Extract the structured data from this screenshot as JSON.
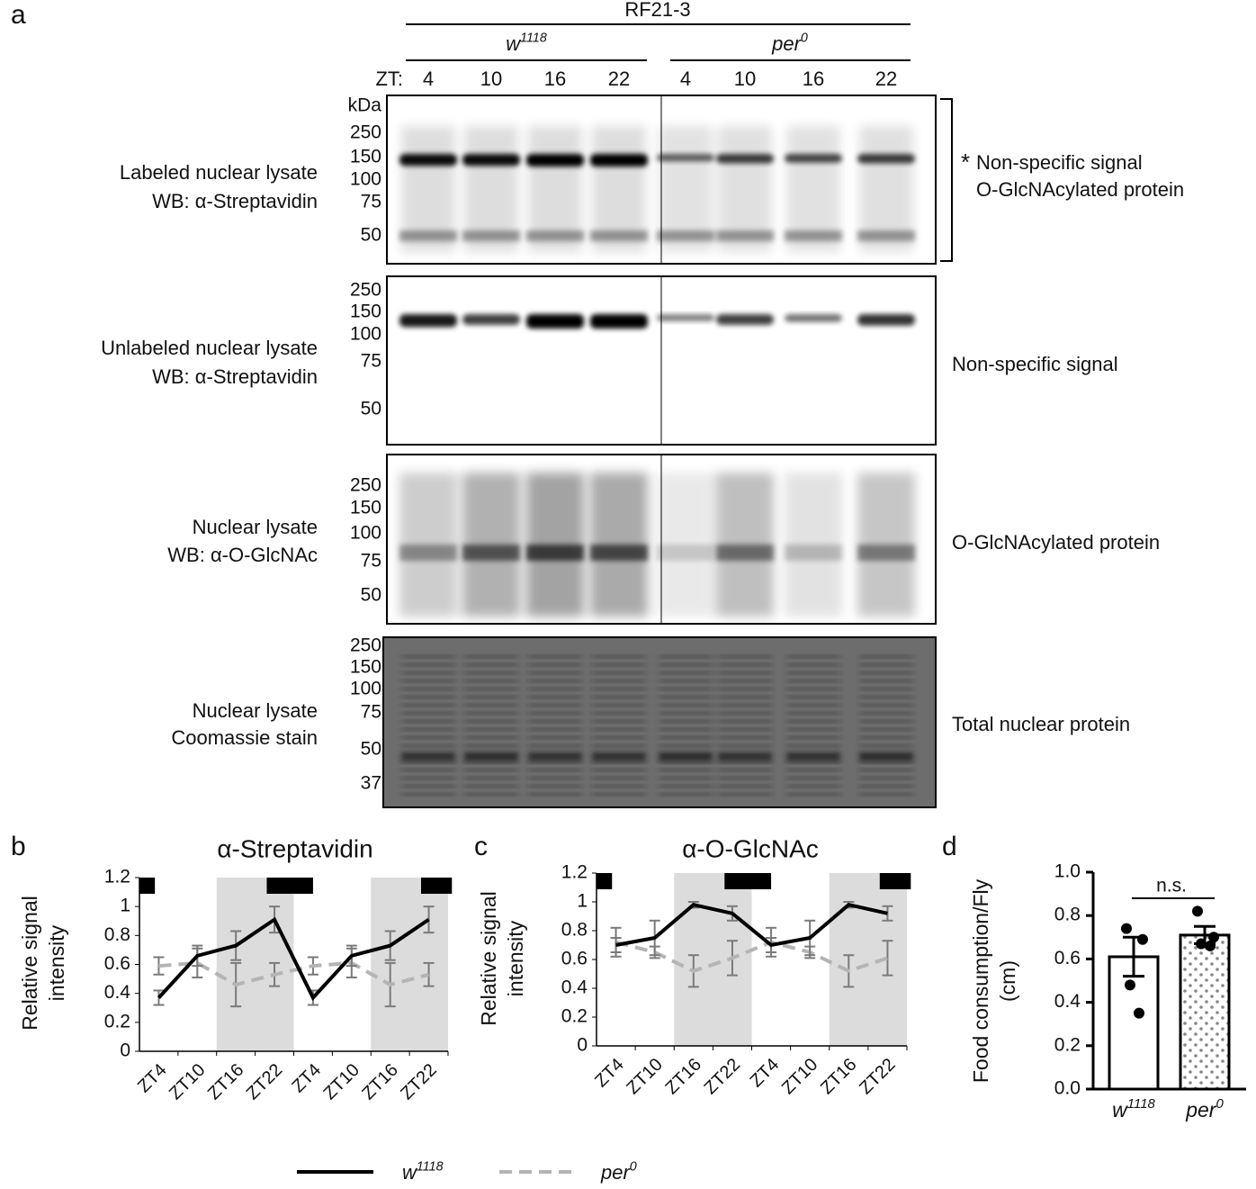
{
  "panel_a": {
    "label": "a",
    "group_title": "RF21-3",
    "genotypes": [
      {
        "name": "w",
        "superscript": "1118"
      },
      {
        "name": "per",
        "superscript": "0"
      }
    ],
    "zt_label": "ZT:",
    "lanes": [
      "4",
      "10",
      "16",
      "22",
      "4",
      "10",
      "16",
      "22"
    ],
    "kda_label": "kDa",
    "blots": [
      {
        "left": [
          "Labeled nuclear lysate",
          "WB: α-Streptavidin"
        ],
        "markers": [
          "250",
          "150",
          "100",
          "75",
          "50"
        ],
        "asterisk": "*",
        "right": [
          "Non-specific signal",
          "O-GlcNAcylated protein"
        ]
      },
      {
        "left": [
          "Unlabeled nuclear lysate",
          "WB: α-Streptavidin"
        ],
        "markers": [
          "250",
          "150",
          "100",
          "75",
          "50"
        ],
        "right": [
          "Non-specific signal"
        ]
      },
      {
        "left": [
          "Nuclear lysate",
          "WB: α-O-GlcNAc"
        ],
        "markers": [
          "250",
          "150",
          "100",
          "75",
          "50"
        ],
        "right": [
          "O-GlcNAcylated protein"
        ]
      },
      {
        "left": [
          "Nuclear lysate",
          "Coomassie stain"
        ],
        "markers": [
          "250",
          "150",
          "100",
          "75",
          "50",
          "37"
        ],
        "right": [
          "Total nuclear protein"
        ]
      }
    ]
  },
  "chart_data": [
    {
      "type": "line",
      "panel": "b",
      "title": "α-Streptavidin",
      "y_label": [
        "Relative signal",
        "intensity"
      ],
      "categories": [
        "ZT4",
        "ZT10",
        "ZT16",
        "ZT22",
        "ZT4",
        "ZT10",
        "ZT16",
        "ZT22"
      ],
      "ylim": [
        0,
        1.2
      ],
      "yticks": [
        0,
        0.2,
        0.4,
        0.6,
        0.8,
        1,
        1.2
      ],
      "series": [
        {
          "name": "w",
          "name_superscript": "1118",
          "color": "#000000",
          "dashed": false,
          "values": [
            0.37,
            0.66,
            0.73,
            0.91,
            0.37,
            0.66,
            0.73,
            0.91
          ],
          "errors": [
            0.05,
            0.07,
            0.1,
            0.09,
            0.05,
            0.07,
            0.1,
            0.09
          ]
        },
        {
          "name": "per",
          "name_superscript": "0",
          "color": "#b4b4b4",
          "dashed": true,
          "values": [
            0.59,
            0.61,
            0.46,
            0.53,
            0.59,
            0.61,
            0.46,
            0.53
          ],
          "errors": [
            0.06,
            0.1,
            0.15,
            0.08,
            0.06,
            0.1,
            0.15,
            0.08
          ]
        }
      ]
    },
    {
      "type": "line",
      "panel": "c",
      "title": "α-O-GlcNAc",
      "y_label": [
        "Relative signal",
        "intensity"
      ],
      "categories": [
        "ZT4",
        "ZT10",
        "ZT16",
        "ZT22",
        "ZT4",
        "ZT10",
        "ZT16",
        "ZT22"
      ],
      "ylim": [
        0,
        1.2
      ],
      "yticks": [
        0,
        0.2,
        0.4,
        0.6,
        0.8,
        1,
        1.2
      ],
      "series": [
        {
          "name": "w",
          "name_superscript": "1118",
          "color": "#000000",
          "dashed": false,
          "values": [
            0.7,
            0.75,
            0.98,
            0.92,
            0.7,
            0.75,
            0.98,
            0.92
          ],
          "errors": [
            0.05,
            0.12,
            0.02,
            0.05,
            0.05,
            0.12,
            0.02,
            0.05
          ]
        },
        {
          "name": "per",
          "name_superscript": "0",
          "color": "#b4b4b4",
          "dashed": true,
          "values": [
            0.72,
            0.65,
            0.52,
            0.61,
            0.72,
            0.65,
            0.52,
            0.61
          ],
          "errors": [
            0.1,
            0.04,
            0.11,
            0.12,
            0.1,
            0.04,
            0.11,
            0.12
          ]
        }
      ]
    },
    {
      "type": "bar",
      "panel": "d",
      "y_label": [
        "Food consumption/Fly",
        "(cm)"
      ],
      "categories": [
        "w",
        "per"
      ],
      "category_superscripts": [
        "1118",
        "0"
      ],
      "values": [
        0.61,
        0.71
      ],
      "errors": [
        0.09,
        0.04
      ],
      "points": [
        [
          0.74,
          0.69,
          0.48,
          0.35
        ],
        [
          0.82,
          0.7,
          0.67,
          0.66
        ]
      ],
      "patterns": [
        "none",
        "dots"
      ],
      "ylim": [
        0,
        1
      ],
      "yticks": [
        {
          "value": 0,
          "label": "0.0"
        },
        {
          "value": 0.2,
          "label": "0.2"
        },
        {
          "value": 0.4,
          "label": "0.4"
        },
        {
          "value": 0.6,
          "label": "0.6"
        },
        {
          "value": 0.8,
          "label": "0.8"
        },
        {
          "value": 1,
          "label": "1.0"
        }
      ],
      "annotation": "n.s."
    }
  ]
}
